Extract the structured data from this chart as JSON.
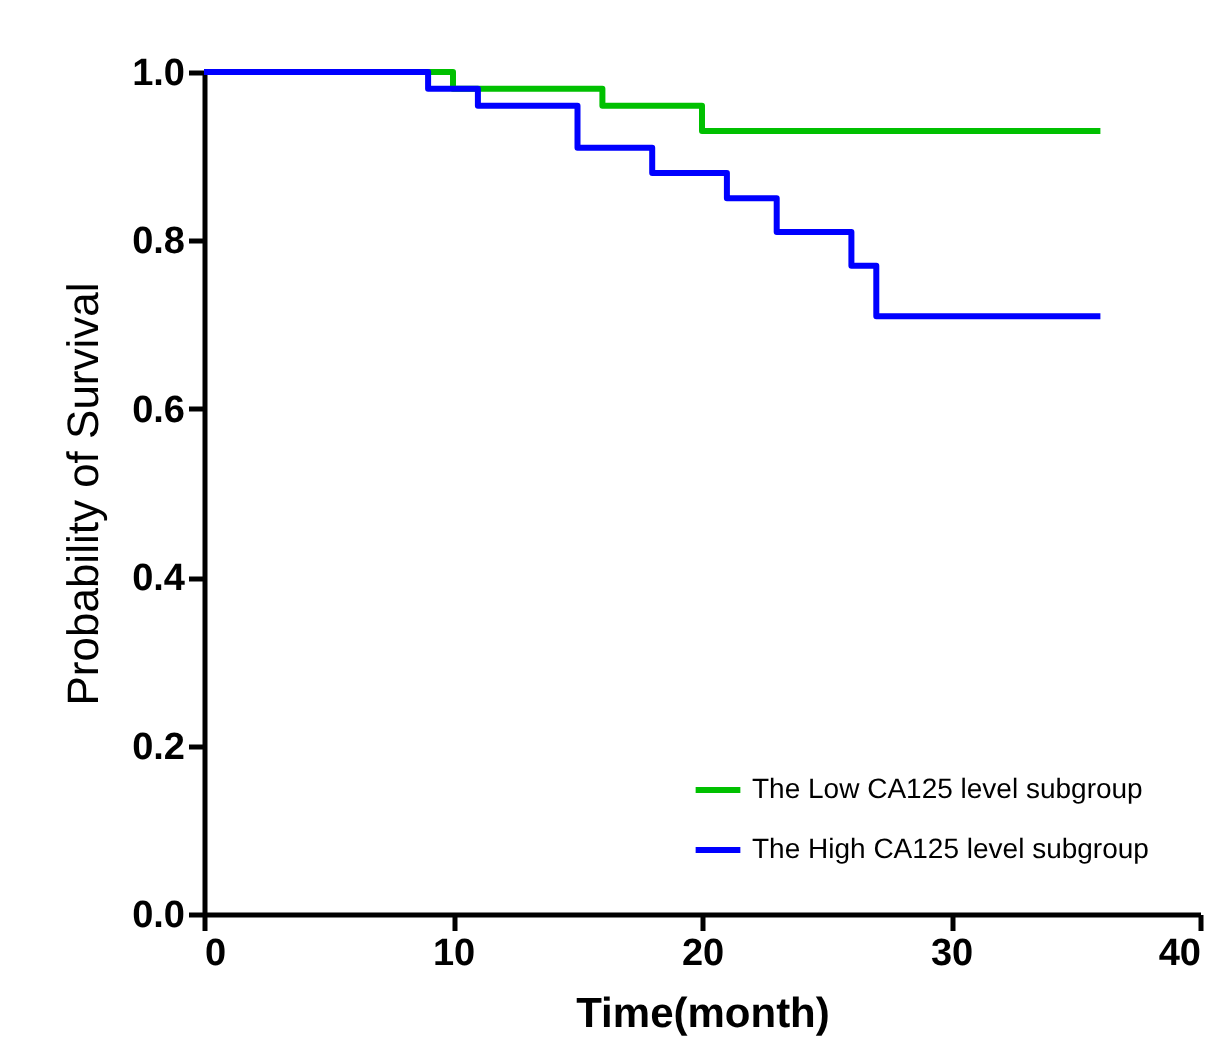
{
  "chart_data": {
    "type": "step",
    "xlabel": "Time(month)",
    "ylabel": "Probability of Survival",
    "xlim": [
      0,
      40
    ],
    "xticks": [
      0,
      10,
      20,
      30,
      40
    ],
    "ylim": [
      0,
      1.0
    ],
    "yticks": [
      {
        "value": 0,
        "label": "0.0"
      },
      {
        "value": 0.2,
        "label": "0.2"
      },
      {
        "value": 0.4,
        "label": "0.4"
      },
      {
        "value": 0.6,
        "label": "0.6"
      },
      {
        "value": 0.8,
        "label": "0.8"
      },
      {
        "value": 1.0,
        "label": "1.0"
      }
    ],
    "grid": false,
    "legend": "bottom right",
    "marker": "none",
    "line_style": "solid",
    "series": [
      {
        "name": "The Low CA125 level subgroup",
        "color": "#00c000",
        "x": [
          0,
          10,
          16,
          20,
          36
        ],
        "values": [
          1.0,
          0.98,
          0.96,
          0.93,
          0.93
        ]
      },
      {
        "name": "The High CA125 level subgroup",
        "color": "#0000ff",
        "x": [
          0,
          9,
          11,
          15,
          18,
          21,
          23,
          26,
          27,
          36
        ],
        "values": [
          1.0,
          0.98,
          0.96,
          0.91,
          0.88,
          0.85,
          0.81,
          0.77,
          0.71,
          0.71
        ]
      }
    ]
  }
}
